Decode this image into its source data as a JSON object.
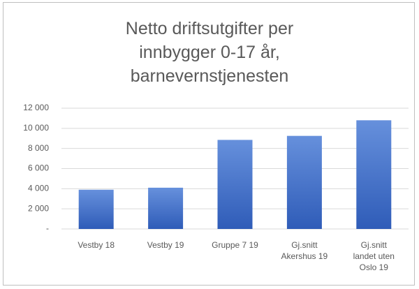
{
  "chart_data": {
    "type": "bar",
    "title": "Netto driftsutgifter per innbygger 0-17 år, barnevernstjenesten",
    "categories": [
      "Vestby 18",
      "Vestby 19",
      "Gruppe 7 19",
      "Gj.snitt Akershus 19",
      "Gj.snitt landet uten Oslo 19"
    ],
    "values": [
      3900,
      4100,
      8850,
      9250,
      10800
    ],
    "color": [
      "#6690dc",
      "#2f5cb8"
    ],
    "ylim": [
      0,
      12000
    ],
    "yticks": [
      {
        "value": 0,
        "label": "-"
      },
      {
        "value": 2000,
        "label": "2 000"
      },
      {
        "value": 4000,
        "label": "4 000"
      },
      {
        "value": 6000,
        "label": "6 000"
      },
      {
        "value": 8000,
        "label": "8 000"
      },
      {
        "value": 10000,
        "label": "10 000"
      },
      {
        "value": 12000,
        "label": "12 000"
      }
    ],
    "grid": true
  }
}
